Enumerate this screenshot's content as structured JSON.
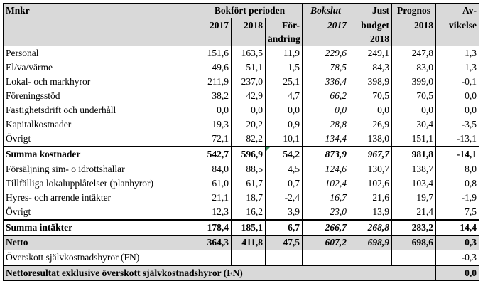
{
  "header": {
    "mnkr": "Mnkr",
    "bokfort": "Bokfört perioden",
    "bokslut_label": "Bokslut",
    "just_budget_1": "Just",
    "just_budget_2": "budget",
    "prognos_label": "Prognos",
    "avvikelse_1": "Av-",
    "avvikelse_2": "vikelse",
    "y2017": "2017",
    "y2018": "2018",
    "forandring_1": "För-",
    "forandring_2": "ändring",
    "bokslut_year": "2017",
    "just_budget_year": "2018",
    "prognos_year": "2018"
  },
  "cost_rows": [
    {
      "label": "Personal",
      "v2017": "151,6",
      "v2018": "163,5",
      "change": "11,9",
      "bokslut": "229,6",
      "budget": "249,1",
      "prognos": "247,8",
      "avvik": "1,3"
    },
    {
      "label": "El/va/värme",
      "v2017": "49,6",
      "v2018": "51,1",
      "change": "1,5",
      "bokslut": "78,5",
      "budget": "84,3",
      "prognos": "83,0",
      "avvik": "1,3"
    },
    {
      "label": "Lokal- och markhyror",
      "v2017": "211,9",
      "v2018": "237,0",
      "change": "25,1",
      "bokslut": "336,4",
      "budget": "398,9",
      "prognos": "399,0",
      "avvik": "-0,1"
    },
    {
      "label": "Föreningsstöd",
      "v2017": "38,2",
      "v2018": "42,9",
      "change": "4,7",
      "bokslut": "66,2",
      "budget": "70,5",
      "prognos": "70,5",
      "avvik": "0,0"
    },
    {
      "label": "Fastighetsdrift och underhåll",
      "v2017": "0,0",
      "v2018": "0,0",
      "change": "0,0",
      "bokslut": "0,0",
      "budget": "0,0",
      "prognos": "0,0",
      "avvik": "0,0"
    },
    {
      "label": "Kapitalkostnader",
      "v2017": "19,3",
      "v2018": "20,2",
      "change": "0,9",
      "bokslut": "28,8",
      "budget": "26,9",
      "prognos": "30,4",
      "avvik": "-3,5"
    },
    {
      "label": "Övrigt",
      "v2017": "72,1",
      "v2018": "82,2",
      "change": "10,1",
      "bokslut": "134,4",
      "budget": "138,0",
      "prognos": "151,1",
      "avvik": "-13,1"
    }
  ],
  "summa_kostnader": {
    "label": "Summa kostnader",
    "v2017": "542,7",
    "v2018": "596,9",
    "change": "54,2",
    "bokslut": "873,9",
    "budget": "967,7",
    "prognos": "981,8",
    "avvik": "-14,1"
  },
  "income_rows": [
    {
      "label": "Försäljning sim- o idrottshallar",
      "v2017": "84,0",
      "v2018": "88,5",
      "change": "4,5",
      "bokslut": "124,6",
      "budget": "130,7",
      "prognos": "138,7",
      "avvik": "8,0"
    },
    {
      "label": "Tillfälliga lokalupplåtelser (planhyror)",
      "v2017": "61,0",
      "v2018": "61,7",
      "change": "0,7",
      "bokslut": "102,4",
      "budget": "102,6",
      "prognos": "103,4",
      "avvik": "0,8"
    },
    {
      "label": "Hyres- och arrende intäkter",
      "v2017": "21,1",
      "v2018": "18,7",
      "change": "-2,4",
      "bokslut": "16,7",
      "budget": "21,6",
      "prognos": "19,7",
      "avvik": "-1,9"
    },
    {
      "label": "Övrigt",
      "v2017": "12,3",
      "v2018": "16,2",
      "change": "3,9",
      "bokslut": "23,0",
      "budget": "13,9",
      "prognos": "21,4",
      "avvik": "7,5"
    }
  ],
  "summa_intakter": {
    "label": "Summa intäkter",
    "v2017": "178,4",
    "v2018": "185,1",
    "change": "6,7",
    "bokslut": "266,7",
    "budget": "268,8",
    "prognos": "283,2",
    "avvik": "14,4"
  },
  "netto": {
    "label": "Netto",
    "v2017": "364,3",
    "v2018": "411,8",
    "change": "47,5",
    "bokslut": "607,2",
    "budget": "698,9",
    "prognos": "698,6",
    "avvik": "0,3"
  },
  "overskott": {
    "label": "Överskott självkostnadshyror (FN)",
    "avvik": "-0,3"
  },
  "nettoresultat": {
    "label": "Nettoresultat exklusive överskott självkostnadshyror (FN)",
    "avvik": "0,0"
  }
}
